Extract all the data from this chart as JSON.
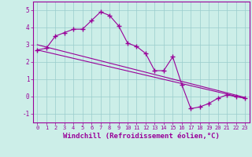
{
  "xlabel": "Windchill (Refroidissement éolien,°C)",
  "bg_color": "#cceee8",
  "line_color": "#990099",
  "marker": "+",
  "xlim": [
    -0.5,
    23.5
  ],
  "ylim": [
    -1.5,
    5.5
  ],
  "yticks": [
    -1,
    0,
    1,
    2,
    3,
    4,
    5
  ],
  "xticks": [
    0,
    1,
    2,
    3,
    4,
    5,
    6,
    7,
    8,
    9,
    10,
    11,
    12,
    13,
    14,
    15,
    16,
    17,
    18,
    19,
    20,
    21,
    22,
    23
  ],
  "series1_x": [
    0,
    1,
    2,
    3,
    4,
    5,
    6,
    7,
    8,
    9,
    10,
    11,
    12,
    13,
    14,
    15,
    16,
    17,
    18,
    19,
    20,
    21,
    22,
    23
  ],
  "series1_y": [
    2.7,
    2.8,
    3.5,
    3.7,
    3.9,
    3.9,
    4.4,
    4.9,
    4.7,
    4.1,
    3.1,
    2.9,
    2.5,
    1.5,
    1.5,
    2.3,
    0.7,
    -0.7,
    -0.6,
    -0.4,
    -0.1,
    0.1,
    0.0,
    -0.1
  ],
  "series2_x": [
    0,
    23
  ],
  "series2_y": [
    2.7,
    -0.1
  ],
  "series3_x": [
    0,
    23
  ],
  "series3_y": [
    3.0,
    -0.05
  ],
  "grid_color": "#99cccc",
  "tick_fontsize": 5.0,
  "xlabel_fontsize": 6.5,
  "marker_size": 5,
  "linewidth": 0.8
}
